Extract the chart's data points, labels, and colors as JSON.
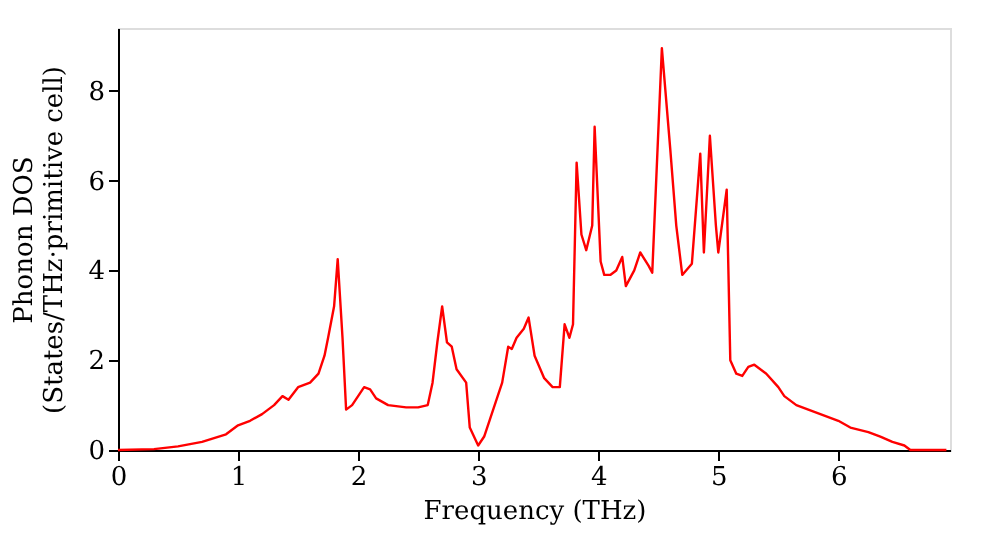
{
  "chart_data": {
    "type": "line",
    "xlabel": "Frequency (THz)",
    "ylabel": "Phonon DOS\n(States/THz·primitive cell)",
    "xlim": [
      0,
      6.93
    ],
    "xticks": [
      0,
      1,
      2,
      3,
      4,
      5,
      6
    ],
    "ylim": [
      0,
      9.4
    ],
    "yticks": [
      0,
      2,
      4,
      6,
      8
    ],
    "grid": false,
    "line_style": "solid",
    "marker": "none",
    "series": [
      {
        "color": "#ff0000",
        "x": [
          0,
          0.3,
          0.5,
          0.7,
          0.9,
          1.0,
          1.1,
          1.2,
          1.3,
          1.37,
          1.42,
          1.5,
          1.6,
          1.67,
          1.72,
          1.75,
          1.8,
          1.83,
          1.87,
          1.9,
          1.95,
          2.0,
          2.05,
          2.1,
          2.15,
          2.25,
          2.4,
          2.5,
          2.58,
          2.62,
          2.66,
          2.7,
          2.74,
          2.78,
          2.82,
          2.9,
          2.93,
          3.0,
          3.05,
          3.1,
          3.2,
          3.25,
          3.28,
          3.32,
          3.38,
          3.42,
          3.47,
          3.55,
          3.62,
          3.68,
          3.72,
          3.76,
          3.79,
          3.82,
          3.86,
          3.9,
          3.95,
          3.97,
          4.02,
          4.05,
          4.1,
          4.15,
          4.2,
          4.23,
          4.3,
          4.35,
          4.42,
          4.45,
          4.53,
          4.6,
          4.65,
          4.7,
          4.78,
          4.85,
          4.88,
          4.93,
          4.98,
          5.0,
          5.07,
          5.1,
          5.15,
          5.2,
          5.25,
          5.3,
          5.4,
          5.5,
          5.55,
          5.65,
          5.8,
          6.0,
          6.1,
          6.25,
          6.35,
          6.45,
          6.55,
          6.6,
          6.9
        ],
        "values": [
          0,
          0.02,
          0.08,
          0.18,
          0.35,
          0.55,
          0.65,
          0.8,
          1.0,
          1.2,
          1.12,
          1.4,
          1.5,
          1.7,
          2.1,
          2.5,
          3.2,
          4.25,
          2.5,
          0.9,
          1.0,
          1.2,
          1.4,
          1.35,
          1.15,
          1.0,
          0.95,
          0.95,
          1.0,
          1.5,
          2.4,
          3.2,
          2.4,
          2.3,
          1.8,
          1.5,
          0.5,
          0.1,
          0.3,
          0.7,
          1.5,
          2.3,
          2.25,
          2.5,
          2.7,
          2.95,
          2.1,
          1.6,
          1.4,
          1.4,
          2.8,
          2.5,
          2.8,
          6.4,
          4.8,
          4.45,
          5.0,
          7.2,
          4.2,
          3.9,
          3.9,
          4.0,
          4.3,
          3.65,
          4.0,
          4.4,
          4.1,
          3.95,
          8.95,
          6.7,
          5.0,
          3.9,
          4.15,
          6.6,
          4.4,
          7.0,
          5.0,
          4.4,
          5.8,
          2.0,
          1.7,
          1.65,
          1.85,
          1.9,
          1.7,
          1.4,
          1.2,
          1.0,
          0.85,
          0.65,
          0.5,
          0.4,
          0.3,
          0.18,
          0.1,
          0.0,
          0.0
        ]
      }
    ]
  }
}
